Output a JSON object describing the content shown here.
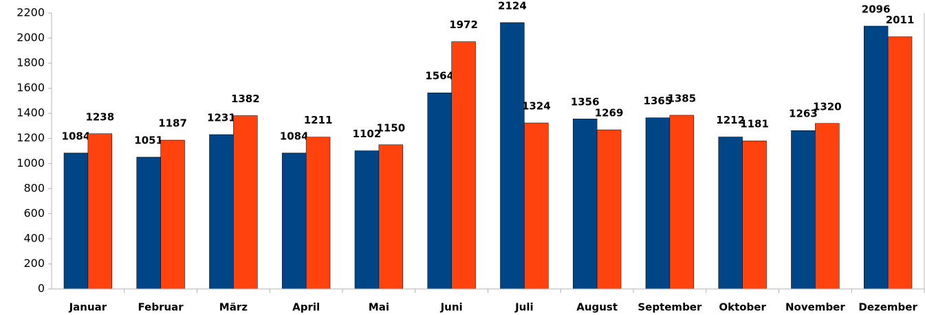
{
  "chart_data": {
    "type": "bar",
    "categories": [
      "Januar",
      "Februar",
      "März",
      "April",
      "Mai",
      "Juni",
      "Juli",
      "August",
      "September",
      "Oktober",
      "November",
      "Dezember"
    ],
    "series": [
      {
        "color": "#004586",
        "values": [
          1084,
          1051,
          1231,
          1084,
          1102,
          1564,
          2124,
          1356,
          1365,
          1212,
          1263,
          2096
        ]
      },
      {
        "color": "#ff420e",
        "values": [
          1238,
          1187,
          1382,
          1211,
          1150,
          1972,
          1324,
          1269,
          1385,
          1181,
          1320,
          2011
        ]
      }
    ],
    "ylim": [
      0,
      2200
    ],
    "yticks": [
      0,
      200,
      400,
      600,
      800,
      1000,
      1200,
      1400,
      1600,
      1800,
      2000,
      2200
    ],
    "grid": false
  }
}
